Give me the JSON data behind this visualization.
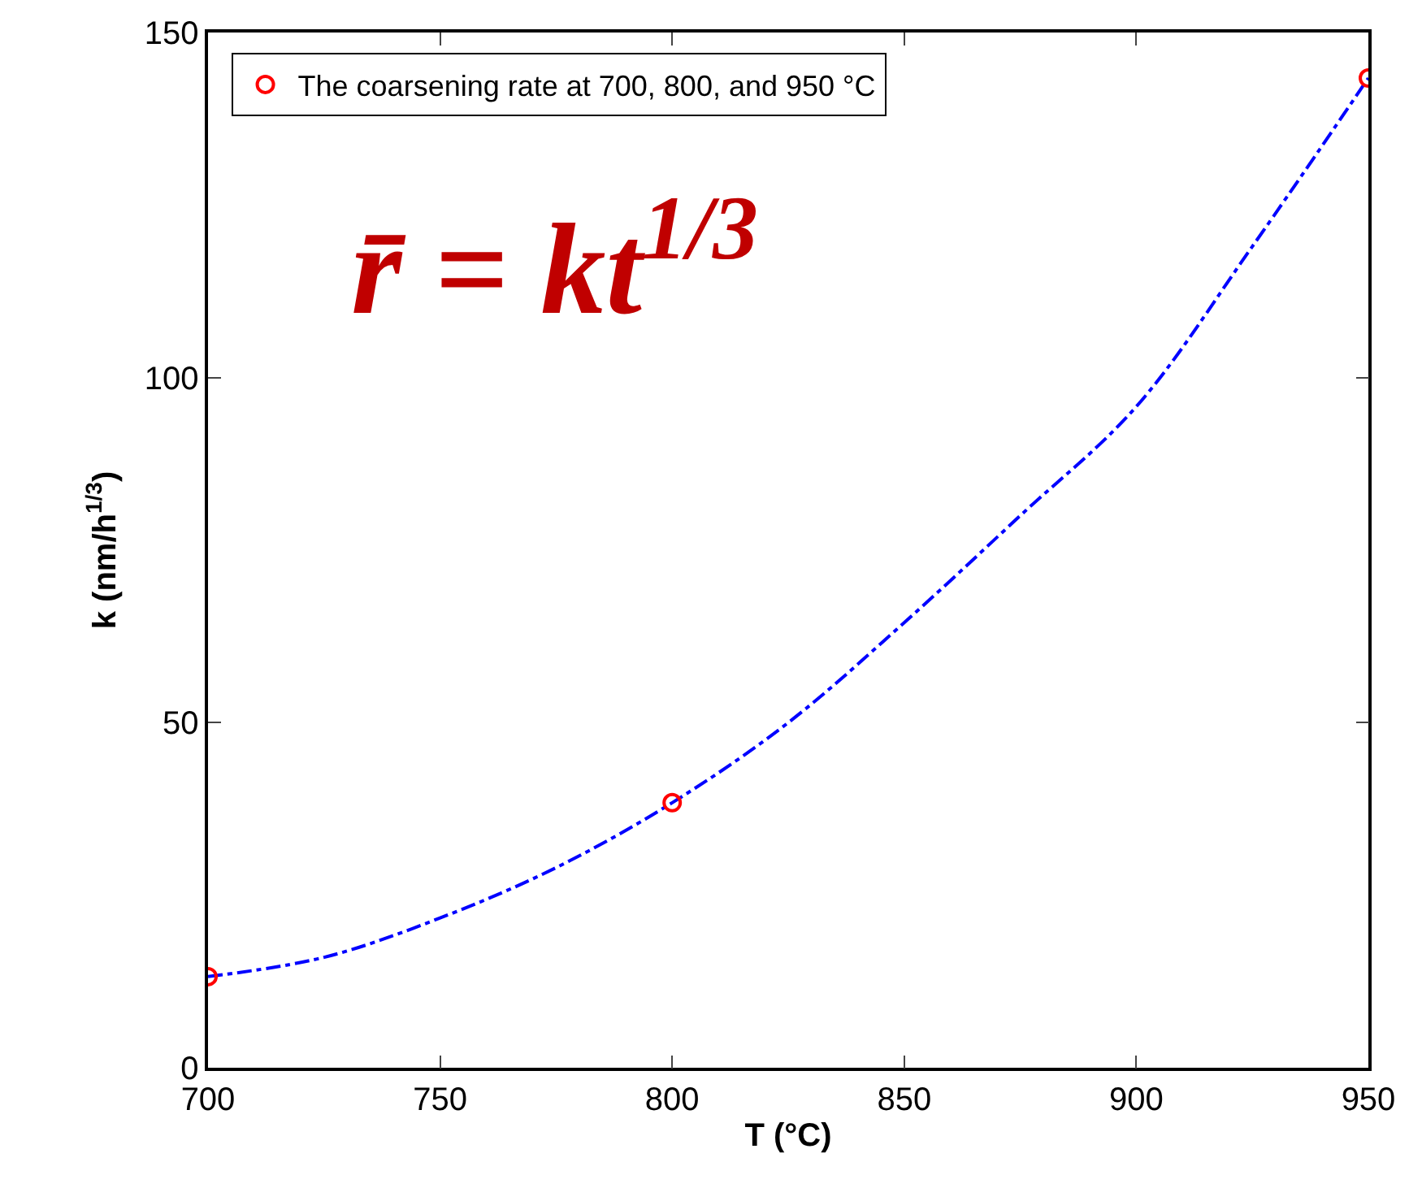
{
  "chart_data": {
    "type": "scatter",
    "xlabel": "T (°C)",
    "ylabel": "k (nm/h$^{1/3}$)",
    "annotations": [
      "r̄ = kt$^{1/3}$"
    ],
    "xlim": [
      700,
      950
    ],
    "xticks": [
      700,
      750,
      800,
      850,
      900,
      950
    ],
    "ylim": [
      0,
      150
    ],
    "yticks": [
      0,
      50,
      100,
      150
    ],
    "grid": false,
    "legend": "top left",
    "series": [
      {
        "type": "line",
        "color": "#0000ff",
        "line_style": "dashed",
        "marker": "none",
        "x": [
          700,
          725,
          750,
          775,
          800,
          825,
          850,
          875,
          900,
          925,
          950
        ],
        "values": [
          13.2,
          16,
          21.7,
          29,
          38.4,
          50,
          64.5,
          80,
          95.8,
          119,
          143.4
        ]
      },
      {
        "name": "The coarsening rate at 700, 800, and 950 °C",
        "color": "#ff0000",
        "marker": "circle",
        "x": [
          700,
          800,
          950
        ],
        "values": [
          13.2,
          38.4,
          143.4
        ]
      }
    ]
  }
}
